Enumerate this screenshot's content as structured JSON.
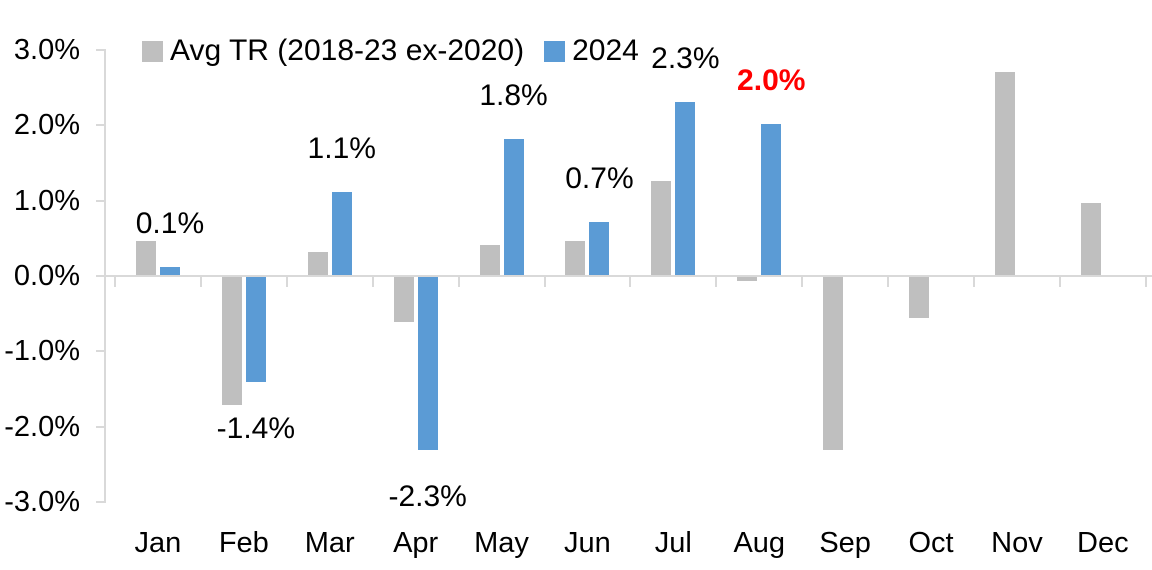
{
  "chart_data": {
    "type": "bar",
    "title": "",
    "categories": [
      "Jan",
      "Feb",
      "Mar",
      "Apr",
      "May",
      "Jun",
      "Jul",
      "Aug",
      "Sep",
      "Oct",
      "Nov",
      "Dec"
    ],
    "series": [
      {
        "name": "Avg TR (2018-23 ex-2020)",
        "color": "#BFBFBF",
        "values": [
          0.45,
          -1.7,
          0.3,
          -0.6,
          0.4,
          0.45,
          1.25,
          -0.05,
          -2.3,
          -0.55,
          2.7,
          0.95
        ]
      },
      {
        "name": "2024",
        "color": "#5B9BD5",
        "values": [
          0.1,
          -1.4,
          1.1,
          -2.3,
          1.8,
          0.7,
          2.3,
          2.0,
          null,
          null,
          null,
          null
        ]
      }
    ],
    "data_labels": [
      {
        "category": "Jan",
        "text": "0.1%",
        "color": "#000000",
        "bold": false
      },
      {
        "category": "Feb",
        "text": "-1.4%",
        "color": "#000000",
        "bold": false
      },
      {
        "category": "Mar",
        "text": "1.1%",
        "color": "#000000",
        "bold": false
      },
      {
        "category": "Apr",
        "text": "-2.3%",
        "color": "#000000",
        "bold": false
      },
      {
        "category": "May",
        "text": "1.8%",
        "color": "#000000",
        "bold": false
      },
      {
        "category": "Jun",
        "text": "0.7%",
        "color": "#000000",
        "bold": false
      },
      {
        "category": "Jul",
        "text": "2.3%",
        "color": "#000000",
        "bold": false
      },
      {
        "category": "Aug",
        "text": "2.0%",
        "color": "#FF0000",
        "bold": true
      }
    ],
    "y_axis": {
      "min": -3,
      "max": 3,
      "step": 1,
      "tick_labels": [
        "3.0%",
        "2.0%",
        "1.0%",
        "0.0%",
        "-1.0%",
        "-2.0%",
        "-3.0%"
      ]
    },
    "x_axis": {
      "tick_labels": [
        "Jan",
        "Feb",
        "Mar",
        "Apr",
        "May",
        "Jun",
        "Jul",
        "Aug",
        "Sep",
        "Oct",
        "Nov",
        "Dec"
      ]
    },
    "legend_position": "top",
    "grid": false,
    "axis_color": "#D9D9D9",
    "background": "#FFFFFF",
    "text_color": "#000000"
  }
}
